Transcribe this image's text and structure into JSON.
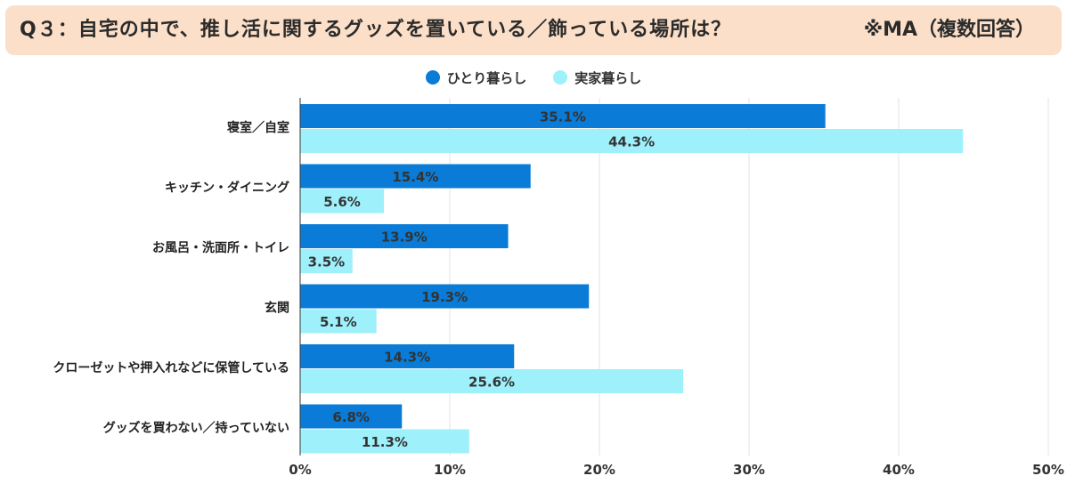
{
  "title": {
    "question": "Q３：自宅の中で、推し活に関するグッズを置いている／飾っている場所は？",
    "note": "※MA（複数回答）"
  },
  "colors": {
    "title_bg": "#fbdfc8",
    "series1": "#0a7bd6",
    "series2": "#9ef0fb",
    "grid": "#e3e3e3",
    "axis": "#333333"
  },
  "chart_data": {
    "type": "bar",
    "orientation": "horizontal",
    "categories": [
      "寝室／自室",
      "キッチン・ダイニング",
      "お風呂・洗面所・トイレ",
      "玄関",
      "クローゼットや押入れなどに保管している",
      "グッズを買わない／持っていない"
    ],
    "series": [
      {
        "name": "ひとり暮らし",
        "values": [
          35.1,
          15.4,
          13.9,
          19.3,
          14.3,
          6.8
        ],
        "labels": [
          "35.1%",
          "15.4%",
          "13.9%",
          "19.3%",
          "14.3%",
          "6.8%"
        ]
      },
      {
        "name": "実家暮らし",
        "values": [
          44.3,
          5.6,
          3.5,
          5.1,
          25.6,
          11.3
        ],
        "labels": [
          "44.3%",
          "5.6%",
          "3.5%",
          "5.1%",
          "25.6%",
          "11.3%"
        ]
      }
    ],
    "xlim": [
      0,
      50
    ],
    "xticks": [
      0,
      10,
      20,
      30,
      40,
      50
    ],
    "xtick_labels": [
      "0%",
      "10%",
      "20%",
      "30%",
      "40%",
      "50%"
    ],
    "grid": true,
    "legend": "top-center"
  }
}
